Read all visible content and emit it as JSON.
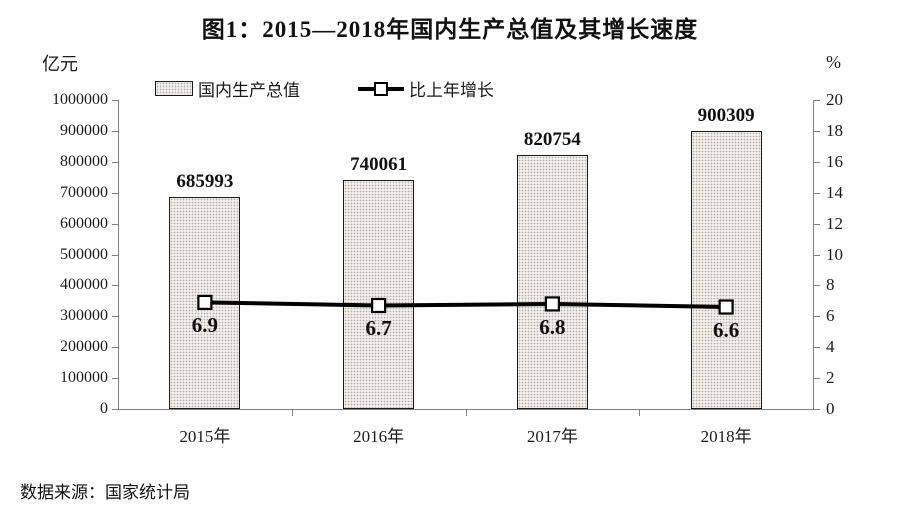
{
  "title": "图1：2015—2018年国内生产总值及其增长速度",
  "source": "数据来源：国家统计局",
  "colors": {
    "text": "#111111",
    "axis": "#808080",
    "bar_fill": "#f2f0ee",
    "bar_dot": "#b4aea7",
    "bar_border": "#1a1a1a",
    "line": "#000000",
    "marker_fill": "#ffffff"
  },
  "chart_data": {
    "type": "bar",
    "subtype": "bar-with-line-overlay",
    "categories": [
      "2015年",
      "2016年",
      "2017年",
      "2018年"
    ],
    "series": [
      {
        "name": "国内生产总值",
        "type": "bar",
        "axis": "left",
        "values": [
          685993,
          740061,
          820754,
          900309
        ]
      },
      {
        "name": "比上年增长",
        "type": "line",
        "axis": "right",
        "values": [
          6.9,
          6.7,
          6.8,
          6.6
        ]
      }
    ],
    "left_axis": {
      "label": "亿元",
      "min": 0,
      "max": 1000000,
      "step": 100000
    },
    "right_axis": {
      "label": "%",
      "min": 0,
      "max": 20,
      "step": 2
    },
    "legend_position": "top",
    "grid": false
  }
}
